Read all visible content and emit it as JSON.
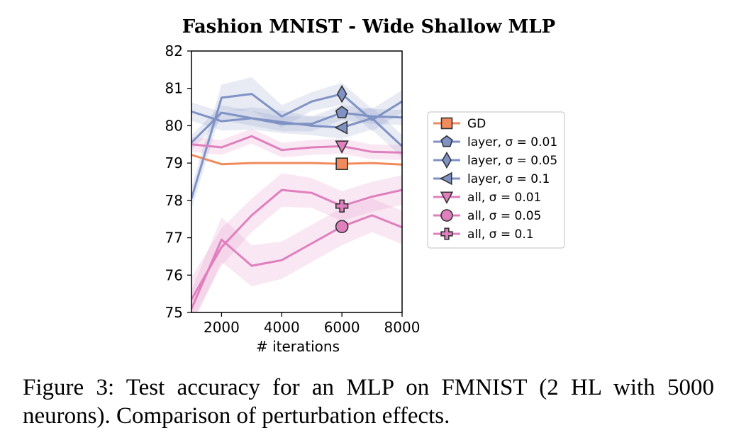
{
  "chart_data": {
    "type": "line",
    "title": "Fashion MNIST - Wide Shallow MLP",
    "xlabel": "# iterations",
    "ylabel": "",
    "xlim": [
      1000,
      8000
    ],
    "ylim": [
      75,
      82
    ],
    "xticks": [
      2000,
      4000,
      6000,
      8000
    ],
    "yticks": [
      75,
      76,
      77,
      78,
      79,
      80,
      81,
      82
    ],
    "x": [
      1000,
      2000,
      3000,
      4000,
      5000,
      6000,
      7000,
      8000
    ],
    "marker_x": 6000,
    "grid": false,
    "legend_position": "right",
    "series": [
      {
        "name": "GD",
        "color": "#f28a5c",
        "marker": "square",
        "values": [
          79.22,
          78.97,
          79.0,
          79.0,
          79.0,
          78.98,
          79.0,
          78.96
        ],
        "band": null
      },
      {
        "name": "layer, σ = 0.01",
        "color": "#7f92c4",
        "marker": "pentagon",
        "values": [
          79.55,
          80.35,
          80.2,
          80.05,
          80.05,
          80.35,
          80.25,
          80.22
        ],
        "band": [
          0.2,
          0.2,
          0.2,
          0.2,
          0.2,
          0.2,
          0.2,
          0.2
        ]
      },
      {
        "name": "layer, σ = 0.05",
        "color": "#7f92c4",
        "marker": "diamond",
        "values": [
          78.05,
          80.75,
          80.85,
          80.25,
          80.65,
          80.85,
          80.15,
          80.65
        ],
        "band": [
          0.3,
          0.35,
          0.45,
          0.3,
          0.25,
          0.3,
          0.3,
          0.3
        ]
      },
      {
        "name": "layer, σ = 0.1",
        "color": "#7f92c4",
        "marker": "triangle-left",
        "values": [
          80.38,
          80.12,
          80.2,
          80.1,
          80.0,
          79.95,
          80.2,
          79.45
        ],
        "band": [
          0.25,
          0.25,
          0.3,
          0.3,
          0.25,
          0.3,
          0.3,
          0.3
        ]
      },
      {
        "name": "all, σ = 0.01",
        "color": "#e07fbe",
        "marker": "triangle-down",
        "values": [
          79.5,
          79.42,
          79.72,
          79.35,
          79.42,
          79.45,
          79.3,
          79.28
        ],
        "band": [
          0.2,
          0.2,
          0.2,
          0.2,
          0.2,
          0.2,
          0.2,
          0.2
        ]
      },
      {
        "name": "all, σ = 0.05",
        "color": "#e07fbe",
        "marker": "circle",
        "values": [
          75.1,
          76.95,
          76.25,
          76.4,
          76.85,
          77.3,
          77.6,
          77.28
        ],
        "band": [
          0.5,
          0.6,
          0.55,
          0.5,
          0.5,
          0.5,
          0.45,
          0.45
        ]
      },
      {
        "name": "all, σ = 0.1",
        "color": "#e07fbe",
        "marker": "plus",
        "values": [
          75.35,
          76.75,
          77.6,
          78.28,
          78.2,
          77.85,
          78.1,
          78.28
        ],
        "band": [
          0.6,
          0.5,
          0.45,
          0.45,
          0.4,
          0.4,
          0.4,
          0.4
        ]
      }
    ]
  },
  "caption": "Figure 3:  Test accuracy for an MLP on FMNIST (2 HL with 5000 neurons). Comparison of perturbation effects."
}
